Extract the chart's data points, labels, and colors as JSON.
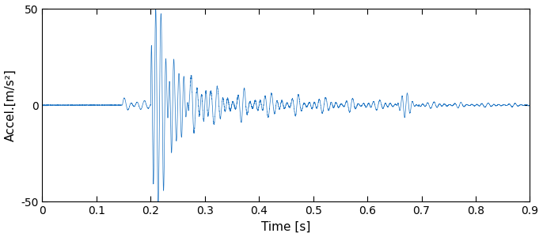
{
  "xlabel": "Time [s]",
  "ylabel": "Accel.[m/s²]",
  "xlim": [
    0,
    0.9
  ],
  "ylim": [
    -50,
    50
  ],
  "xticks": [
    0,
    0.1,
    0.2,
    0.3,
    0.4,
    0.5,
    0.6,
    0.7,
    0.8,
    0.9
  ],
  "yticks": [
    -50,
    0,
    50
  ],
  "line_color": "#2176C4",
  "line_width": 0.5,
  "background_color": "#ffffff",
  "figsize": [
    6.86,
    3.0
  ],
  "dpi": 100
}
